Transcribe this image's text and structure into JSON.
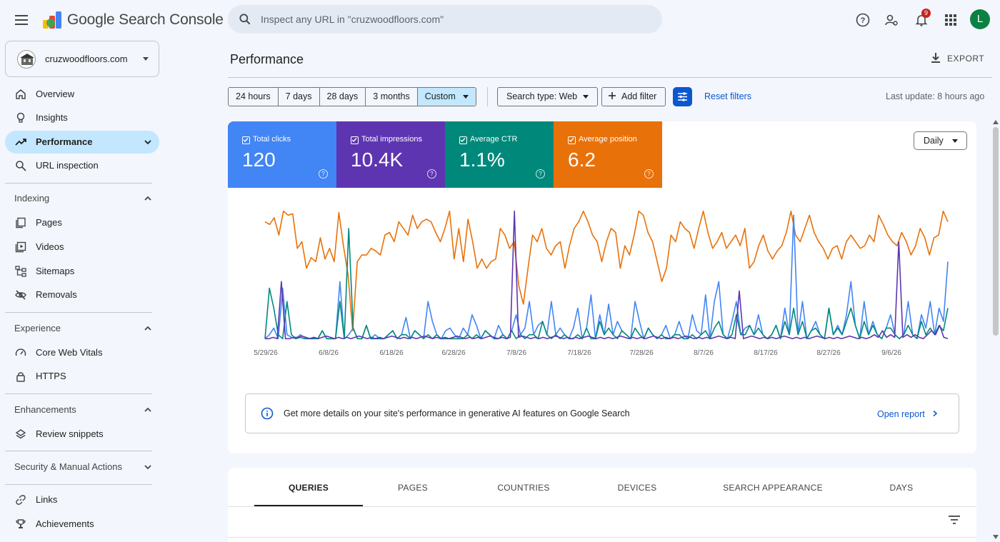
{
  "app": {
    "product_name": "Google Search Console",
    "search_placeholder": "Inspect any URL in \"cruzwoodfloors.com\"",
    "notification_count": "9",
    "avatar_letter": "L"
  },
  "property": {
    "name": "cruzwoodfloors.com"
  },
  "sidebar": {
    "items": [
      {
        "label": "Overview",
        "icon": "home-icon"
      },
      {
        "label": "Insights",
        "icon": "lightbulb-icon"
      },
      {
        "label": "Performance",
        "icon": "trending-up-icon",
        "active": true
      },
      {
        "label": "URL inspection",
        "icon": "search-icon"
      }
    ],
    "indexing": {
      "title": "Indexing",
      "items": [
        "Pages",
        "Videos",
        "Sitemaps",
        "Removals"
      ]
    },
    "experience": {
      "title": "Experience",
      "items": [
        "Core Web Vitals",
        "HTTPS"
      ]
    },
    "enhancements": {
      "title": "Enhancements",
      "items": [
        "Review snippets"
      ]
    },
    "security": {
      "title": "Security & Manual Actions"
    },
    "bottom": {
      "items": [
        "Links",
        "Achievements"
      ]
    }
  },
  "page": {
    "title": "Performance",
    "export_label": "EXPORT",
    "ranges": [
      "24 hours",
      "7 days",
      "28 days",
      "3 months",
      "Custom"
    ],
    "selected_range": "Custom",
    "search_type": "Search type: Web",
    "add_filter": "Add filter",
    "reset_filters": "Reset filters",
    "last_update": "Last update: 8 hours ago",
    "granularity": "Daily"
  },
  "metrics": [
    {
      "label": "Total clicks",
      "value": "120",
      "color": "#4285f4"
    },
    {
      "label": "Total impressions",
      "value": "10.4K",
      "color": "#5e35b1"
    },
    {
      "label": "Average CTR",
      "value": "1.1%",
      "color": "#00897b"
    },
    {
      "label": "Average position",
      "value": "6.2",
      "color": "#e8710a"
    }
  ],
  "chart_data": {
    "type": "line",
    "x_ticks": [
      "5/29/26",
      "6/8/26",
      "6/18/26",
      "6/28/26",
      "7/8/26",
      "7/18/26",
      "7/28/26",
      "8/7/26",
      "8/17/26",
      "8/27/26",
      "9/6/26"
    ],
    "series": [
      {
        "name": "Average position",
        "color": "#e8710a",
        "values": [
          0.9,
          0.88,
          0.93,
          0.8,
          0.98,
          0.95,
          0.96,
          0.7,
          0.75,
          0.55,
          0.63,
          0.6,
          0.78,
          0.62,
          0.7,
          0.6,
          0.97,
          0.72,
          0.5,
          0.08,
          0.6,
          0.65,
          0.65,
          0.7,
          0.68,
          0.65,
          0.8,
          0.82,
          0.75,
          0.9,
          0.85,
          0.8,
          0.95,
          0.85,
          0.9,
          0.92,
          0.9,
          0.82,
          0.75,
          0.85,
          0.98,
          0.62,
          0.85,
          0.6,
          0.92,
          0.75,
          0.55,
          0.62,
          0.55,
          0.6,
          0.62,
          0.85,
          0.8,
          0.7,
          0.75,
          0.42,
          0.28,
          0.55,
          0.8,
          0.75,
          0.85,
          0.7,
          0.65,
          0.72,
          0.75,
          0.55,
          0.72,
          0.85,
          0.9,
          0.98,
          0.9,
          0.8,
          0.75,
          0.6,
          0.75,
          0.85,
          0.82,
          0.55,
          0.72,
          0.65,
          0.8,
          0.98,
          0.95,
          0.82,
          0.75,
          0.6,
          0.45,
          0.55,
          0.8,
          0.75,
          0.9,
          0.85,
          0.82,
          0.7,
          0.85,
          0.98,
          0.82,
          0.7,
          0.75,
          0.82,
          0.7,
          0.75,
          0.8,
          0.72,
          0.85,
          0.55,
          0.6,
          0.72,
          0.8,
          0.68,
          0.62,
          0.68,
          0.72,
          0.82,
          0.98,
          0.8,
          0.75,
          0.85,
          0.95,
          0.82,
          0.75,
          0.7,
          0.62,
          0.7,
          0.72,
          0.62,
          0.75,
          0.8,
          0.75,
          0.7,
          0.72,
          0.8,
          0.75,
          0.95,
          0.88,
          0.8,
          0.75,
          0.72,
          0.82,
          0.75,
          0.65,
          0.72,
          0.85,
          0.78,
          0.65,
          0.78,
          0.8,
          0.98,
          0.9
        ]
      },
      {
        "name": "Total clicks",
        "color": "#4285f4",
        "values": [
          0.02,
          0.05,
          0.1,
          0.02,
          0.4,
          0.05,
          0.03,
          0.02,
          0.05,
          0.03,
          0.02,
          0.03,
          0.02,
          0.08,
          0.02,
          0.02,
          0.02,
          0.45,
          0.02,
          0.05,
          0.1,
          0.02,
          0.02,
          0.12,
          0.02,
          0.05,
          0.02,
          0.02,
          0.05,
          0.08,
          0.02,
          0.05,
          0.18,
          0.02,
          0.08,
          0.05,
          0.02,
          0.3,
          0.15,
          0.05,
          0.02,
          0.08,
          0.1,
          0.05,
          0.02,
          0.1,
          0.05,
          0.2,
          0.12,
          0.02,
          0.08,
          0.05,
          0.02,
          0.12,
          0.05,
          0.02,
          0.08,
          0.2,
          0.05,
          0.1,
          0.3,
          0.05,
          0.12,
          0.15,
          0.05,
          0.3,
          0.05,
          0.1,
          0.05,
          0.02,
          0.1,
          0.25,
          0.02,
          0.1,
          0.35,
          0.02,
          0.2,
          0.05,
          0.28,
          0.05,
          0.15,
          0.08,
          0.05,
          0.02,
          0.3,
          0.15,
          0.02,
          0.1,
          0.05,
          0.02,
          0.05,
          0.12,
          0.02,
          0.05,
          0.15,
          0.05,
          0.02,
          0.2,
          0.08,
          0.05,
          0.35,
          0.02,
          0.3,
          0.45,
          0.05,
          0.02,
          0.15,
          0.3,
          0.05,
          0.1,
          0.12,
          0.05,
          0.2,
          0.05,
          0.02,
          0.05,
          0.12,
          0.02,
          0.25,
          0.05,
          0.95,
          0.05,
          0.3,
          0.02,
          0.08,
          0.15,
          0.05,
          0.02,
          0.25,
          0.05,
          0.12,
          0.05,
          0.2,
          0.45,
          0.12,
          0.02,
          0.3,
          0.05,
          0.15,
          0.05,
          0.02,
          0.1,
          0.2,
          0.05,
          0.02,
          0.05,
          0.3,
          0.05,
          0.02,
          0.2,
          0.1,
          0.3,
          0.05,
          0.25,
          0.15,
          0.6
        ]
      },
      {
        "name": "Average CTR",
        "color": "#00897b",
        "values": [
          0.02,
          0.4,
          0.25,
          0.05,
          0.02,
          0.3,
          0.05,
          0.02,
          0.03,
          0.02,
          0.02,
          0.02,
          0.02,
          0.08,
          0.02,
          0.02,
          0.02,
          0.3,
          0.02,
          0.85,
          0.1,
          0.02,
          0.02,
          0.12,
          0.02,
          0.02,
          0.02,
          0.02,
          0.05,
          0.08,
          0.02,
          0.05,
          0.05,
          0.02,
          0.08,
          0.05,
          0.02,
          0.05,
          0.02,
          0.05,
          0.02,
          0.02,
          0.02,
          0.02,
          0.02,
          0.02,
          0.05,
          0.02,
          0.05,
          0.02,
          0.08,
          0.05,
          0.02,
          0.02,
          0.05,
          0.02,
          0.08,
          0.02,
          0.05,
          0.02,
          0.05,
          0.05,
          0.02,
          0.15,
          0.05,
          0.02,
          0.05,
          0.02,
          0.05,
          0.02,
          0.02,
          0.05,
          0.02,
          0.1,
          0.02,
          0.02,
          0.15,
          0.05,
          0.1,
          0.05,
          0.02,
          0.08,
          0.05,
          0.02,
          0.1,
          0.05,
          0.02,
          0.1,
          0.05,
          0.02,
          0.05,
          0.02,
          0.02,
          0.05,
          0.05,
          0.02,
          0.02,
          0.05,
          0.02,
          0.05,
          0.08,
          0.02,
          0.1,
          0.15,
          0.05,
          0.02,
          0.05,
          0.2,
          0.05,
          0.05,
          0.12,
          0.05,
          0.1,
          0.05,
          0.02,
          0.05,
          0.12,
          0.02,
          0.15,
          0.05,
          0.25,
          0.05,
          0.15,
          0.02,
          0.08,
          0.1,
          0.05,
          0.02,
          0.25,
          0.05,
          0.1,
          0.05,
          0.15,
          0.25,
          0.12,
          0.02,
          0.15,
          0.05,
          0.12,
          0.05,
          0.02,
          0.1,
          0.1,
          0.05,
          0.02,
          0.05,
          0.12,
          0.05,
          0.02,
          0.15,
          0.05,
          0.1,
          0.05,
          0.12,
          0.08,
          0.25
        ]
      },
      {
        "name": "Total impressions",
        "color": "#5e35b1",
        "values": [
          0.02,
          0.02,
          0.03,
          0.02,
          0.45,
          0.02,
          0.02,
          0.03,
          0.03,
          0.04,
          0.03,
          0.02,
          0.03,
          0.02,
          0.03,
          0.04,
          0.03,
          0.02,
          0.03,
          0.02,
          0.03,
          0.02,
          0.03,
          0.04,
          0.03,
          0.02,
          0.03,
          0.02,
          0.03,
          0.02,
          0.03,
          0.04,
          0.03,
          0.02,
          0.03,
          0.02,
          0.03,
          0.02,
          0.03,
          0.04,
          0.03,
          0.02,
          0.03,
          0.02,
          0.03,
          0.02,
          0.03,
          0.04,
          0.03,
          0.02,
          0.03,
          0.02,
          0.03,
          0.02,
          0.03,
          0.04,
          0.03,
          0.02,
          0.03,
          0.02,
          0.03,
          0.98,
          0.03,
          0.04,
          0.03,
          0.02,
          0.03,
          0.02,
          0.03,
          0.02,
          0.03,
          0.04,
          0.03,
          0.02,
          0.03,
          0.02,
          0.03,
          0.02,
          0.03,
          0.04,
          0.03,
          0.02,
          0.03,
          0.02,
          0.03,
          0.02,
          0.03,
          0.04,
          0.03,
          0.02,
          0.03,
          0.02,
          0.03,
          0.02,
          0.03,
          0.04,
          0.03,
          0.02,
          0.03,
          0.02,
          0.03,
          0.02,
          0.03,
          0.04,
          0.03,
          0.02,
          0.03,
          0.02,
          0.03,
          0.02,
          0.03,
          0.04,
          0.03,
          0.02,
          0.03,
          0.02,
          0.38,
          0.02,
          0.03,
          0.04,
          0.03,
          0.02,
          0.03,
          0.02,
          0.03,
          0.02,
          0.03,
          0.04,
          0.03,
          0.02,
          0.03,
          0.02,
          0.03,
          0.02,
          0.03,
          0.04,
          0.03,
          0.02,
          0.03,
          0.02,
          0.03,
          0.02,
          0.03,
          0.04,
          0.03,
          0.02,
          0.03,
          0.02,
          0.03,
          0.05,
          0.03,
          0.08,
          0.03,
          0.05,
          0.03,
          0.75,
          0.03,
          0.05,
          0.03,
          0.05,
          0.03,
          0.02,
          0.05,
          0.08,
          0.05,
          0.12,
          0.03,
          0.02
        ]
      }
    ]
  },
  "ai_banner": {
    "text": "Get more details on your site's performance in generative AI features on Google Search",
    "link": "Open report"
  },
  "tabs": [
    "QUERIES",
    "PAGES",
    "COUNTRIES",
    "DEVICES",
    "SEARCH APPEARANCE",
    "DAYS"
  ]
}
